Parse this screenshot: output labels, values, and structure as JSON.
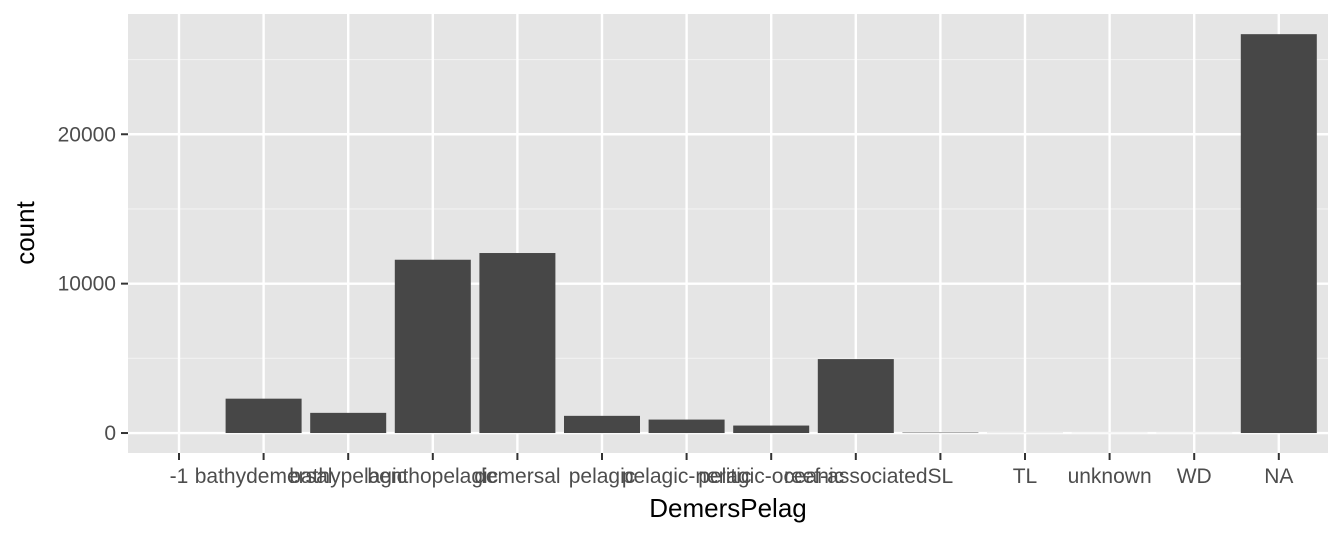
{
  "chart_data": {
    "type": "bar",
    "xlabel": "DemersPelag",
    "ylabel": "count",
    "categories": [
      "-1",
      "bathydemersal",
      "bathypelagic",
      "benthopelagic",
      "demersal",
      "pelagic",
      "pelagic-neritic",
      "pelagic-oceanic",
      "reef-associated",
      "SL",
      "TL",
      "unknown",
      "WD",
      "NA"
    ],
    "values": [
      0,
      2300,
      1350,
      11600,
      12050,
      1150,
      900,
      500,
      4950,
      30,
      8,
      5,
      5,
      26700
    ],
    "ylim": [
      -1337,
      28050
    ],
    "yticks": [
      0,
      10000,
      20000
    ],
    "ytick_labels": [
      "0",
      "10000",
      "20000"
    ],
    "grid": true,
    "colors": {
      "panel_background": "#e5e5e5",
      "grid_major": "#ffffff",
      "grid_minor": "#f2f2f2",
      "bar_fill": "#474747",
      "tick_text": "#4d4d4d",
      "tick_mark": "#333333"
    }
  }
}
